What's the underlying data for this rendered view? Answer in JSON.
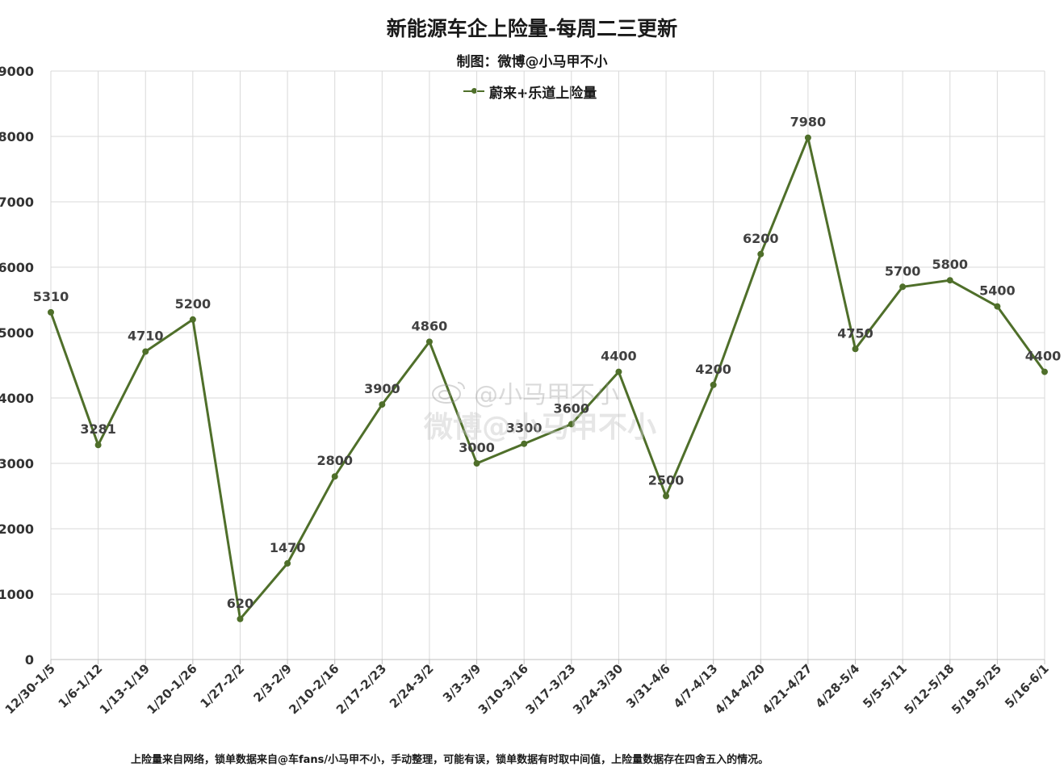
{
  "chart_data": {
    "type": "line",
    "title": "新能源车企上险量-每周二三更新",
    "subtitle": "制图：微博@小马甲不小",
    "categories": [
      "12/30-1/5",
      "1/6-1/12",
      "1/13-1/19",
      "1/20-1/26",
      "1/27-2/2",
      "2/3-2/9",
      "2/10-2/16",
      "2/17-2/23",
      "2/24-3/2",
      "3/3-3/9",
      "3/10-3/16",
      "3/17-3/23",
      "3/24-3/30",
      "3/31-4/6",
      "4/7-4/13",
      "4/14-4/20",
      "4/21-4/27",
      "4/28-5/4",
      "5/5-5/11",
      "5/12-5/18",
      "5/19-5/25",
      "5/16-6/1"
    ],
    "series": [
      {
        "name": "蔚来+乐道上险量",
        "values": [
          5310,
          3281,
          4710,
          5200,
          620,
          1470,
          2800,
          3900,
          4860,
          3000,
          3300,
          3600,
          4400,
          2500,
          4200,
          6200,
          7980,
          4750,
          5700,
          5800,
          5400,
          4400
        ],
        "color": "#4f6f2a"
      }
    ],
    "ylim": [
      0,
      9000
    ],
    "yticks": [
      0,
      1000,
      2000,
      3000,
      4000,
      5000,
      6000,
      7000,
      8000,
      9000
    ],
    "xlabel": "",
    "ylabel": "",
    "grid": true,
    "legend": "top-center",
    "data_labels": true
  },
  "footnote": "上险量来自网络，锁单数据来自@车fans/小马甲不小，手动整理，可能有误，锁单数据有时取中间值，上险量数据存在四舍五入的情况。",
  "watermark": {
    "line1": "@小马甲不小",
    "line2": "微博@小马甲不小"
  }
}
